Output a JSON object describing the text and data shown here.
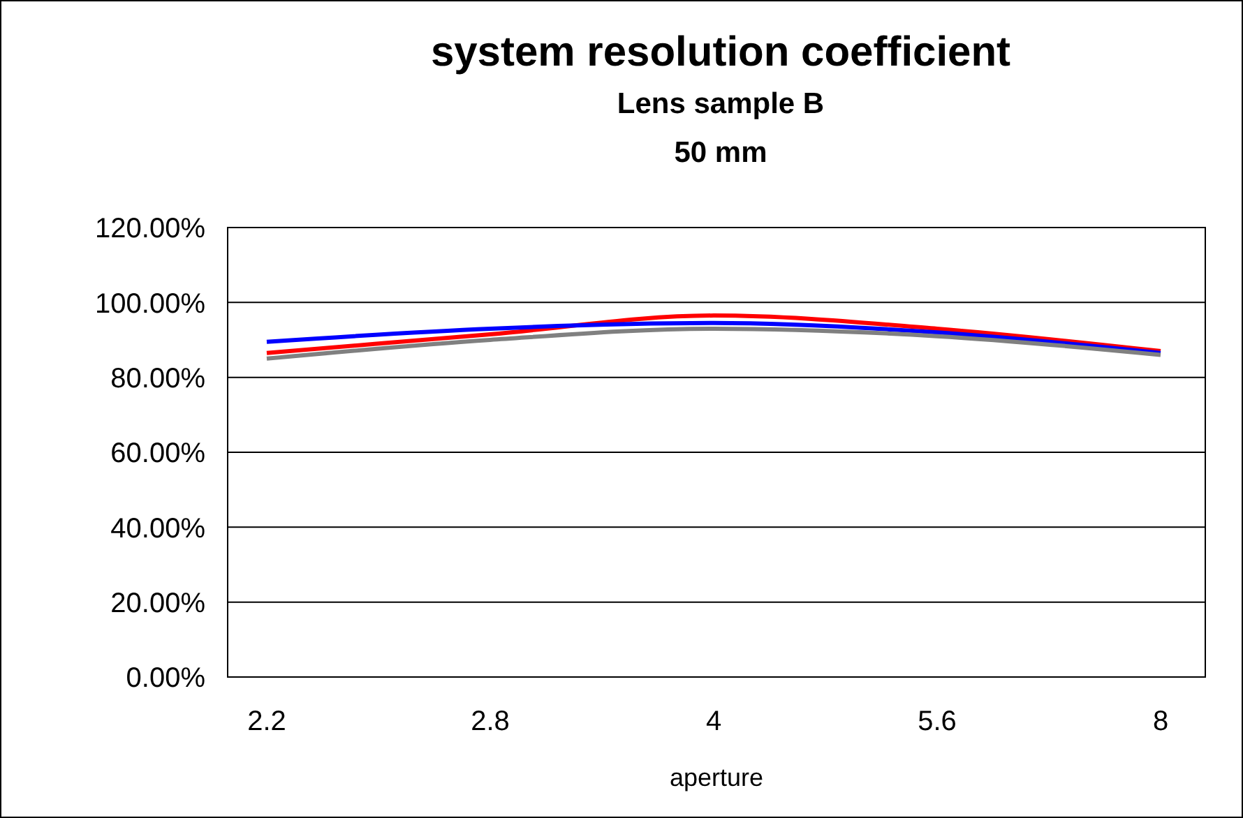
{
  "chart_data": {
    "type": "line",
    "title": "system resolution coefficient",
    "subtitle": "Lens sample B\n50 mm",
    "xlabel": "aperture",
    "categories": [
      "2.2",
      "2.8",
      "4",
      "5.6",
      "8"
    ],
    "series": [
      {
        "color": "#ff0000",
        "values": [
          86.5,
          91.5,
          96.5,
          93,
          87
        ]
      },
      {
        "color": "#0000ff",
        "values": [
          89.5,
          93,
          94.5,
          92,
          86.5
        ]
      },
      {
        "color": "#808080",
        "values": [
          85,
          90,
          93,
          91,
          86
        ]
      }
    ],
    "ylim": [
      0,
      120
    ],
    "yticks": [
      {
        "value": 0,
        "label": "0.00%"
      },
      {
        "value": 20,
        "label": "20.00%"
      },
      {
        "value": 40,
        "label": "40.00%"
      },
      {
        "value": 60,
        "label": "60.00%"
      },
      {
        "value": 80,
        "label": "80.00%"
      },
      {
        "value": 100,
        "label": "100.00%"
      },
      {
        "value": 120,
        "label": "120.00%"
      }
    ],
    "grid": "y",
    "legend": false,
    "marker": "none",
    "line_style": "solid"
  }
}
